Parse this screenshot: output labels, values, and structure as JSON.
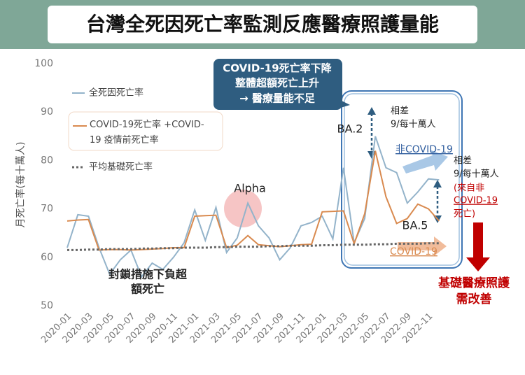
{
  "title": "台灣全死因死亡率監測反應醫療照護量能",
  "chart_data": {
    "type": "line",
    "y_label": "月死亡率(每十萬人)",
    "categories": [
      "2020-01",
      null,
      "2020-03",
      null,
      "2020-05",
      null,
      "2020-07",
      null,
      "2020-09",
      null,
      "2020-11",
      null,
      "2021-01",
      null,
      "2021-03",
      null,
      "2021-05",
      null,
      "2021-07",
      null,
      "2021-09",
      null,
      "2021-11",
      null,
      "2022-01",
      null,
      "2022-03",
      null,
      "2022-05",
      null,
      "2022-07",
      null,
      "2022-09",
      null,
      "2022-11",
      null
    ],
    "series": [
      {
        "name": "全死因死亡率",
        "color": "#93b3ca",
        "style": "solid",
        "values": [
          62,
          68.8,
          68.5,
          62,
          56.5,
          59.5,
          61.5,
          56,
          58.8,
          57.5,
          60,
          63,
          69.8,
          63.5,
          70.3,
          61,
          64,
          71.2,
          66.5,
          64,
          59.5,
          62,
          66.5,
          67.2,
          68.5,
          63.8,
          78.5,
          63,
          68,
          85,
          78.5,
          77.5,
          71.2,
          73.5,
          76.2,
          76
        ]
      },
      {
        "name": "COVID-19死亡率 +COVID-19 疫情前死亡率",
        "color": "#d98a4f",
        "style": "solid",
        "values": [
          67.5,
          67.7,
          67.8,
          61.5,
          61.6,
          61.6,
          61.5,
          61.6,
          61.7,
          61.8,
          62,
          62,
          68.5,
          68.6,
          68.7,
          62,
          62.5,
          64.5,
          62.6,
          62.4,
          62.2,
          62.4,
          62.6,
          62.7,
          69.4,
          69.5,
          69.6,
          62.8,
          69,
          82,
          72.5,
          67,
          68,
          71,
          70,
          67.5
        ]
      },
      {
        "name": "平均基礎死亡率",
        "color": "#666666",
        "style": "dotted",
        "values": [
          61.5,
          61.5,
          61.6,
          61.6,
          61.7,
          61.7,
          61.7,
          61.8,
          61.8,
          61.9,
          61.9,
          62.0,
          62.0,
          62.0,
          62.1,
          62.1,
          62.2,
          62.2,
          62.2,
          62.3,
          62.3,
          62.4,
          62.4,
          62.4,
          62.5,
          62.5,
          62.6,
          62.6,
          62.6,
          62.7,
          62.7,
          62.8,
          62.8,
          62.8,
          62.9,
          62.9
        ]
      }
    ],
    "ylim": [
      50,
      100
    ],
    "yticks": [
      50,
      60,
      70,
      80,
      90,
      100
    ],
    "annotations": [
      "COVID-19死亡率下降",
      "整體超額死亡上升",
      "→ 醫療量能不足",
      "Alpha",
      "BA.2",
      "BA.5",
      "相差",
      "9/每十萬人",
      "非COVID-19",
      "相差",
      "9/每十萬人",
      "(來自非",
      "COVID-19",
      "死亡)",
      "COVID-19",
      "封鎖措施下負超",
      "額死亡",
      "基礎醫療照護",
      "需改善"
    ]
  }
}
